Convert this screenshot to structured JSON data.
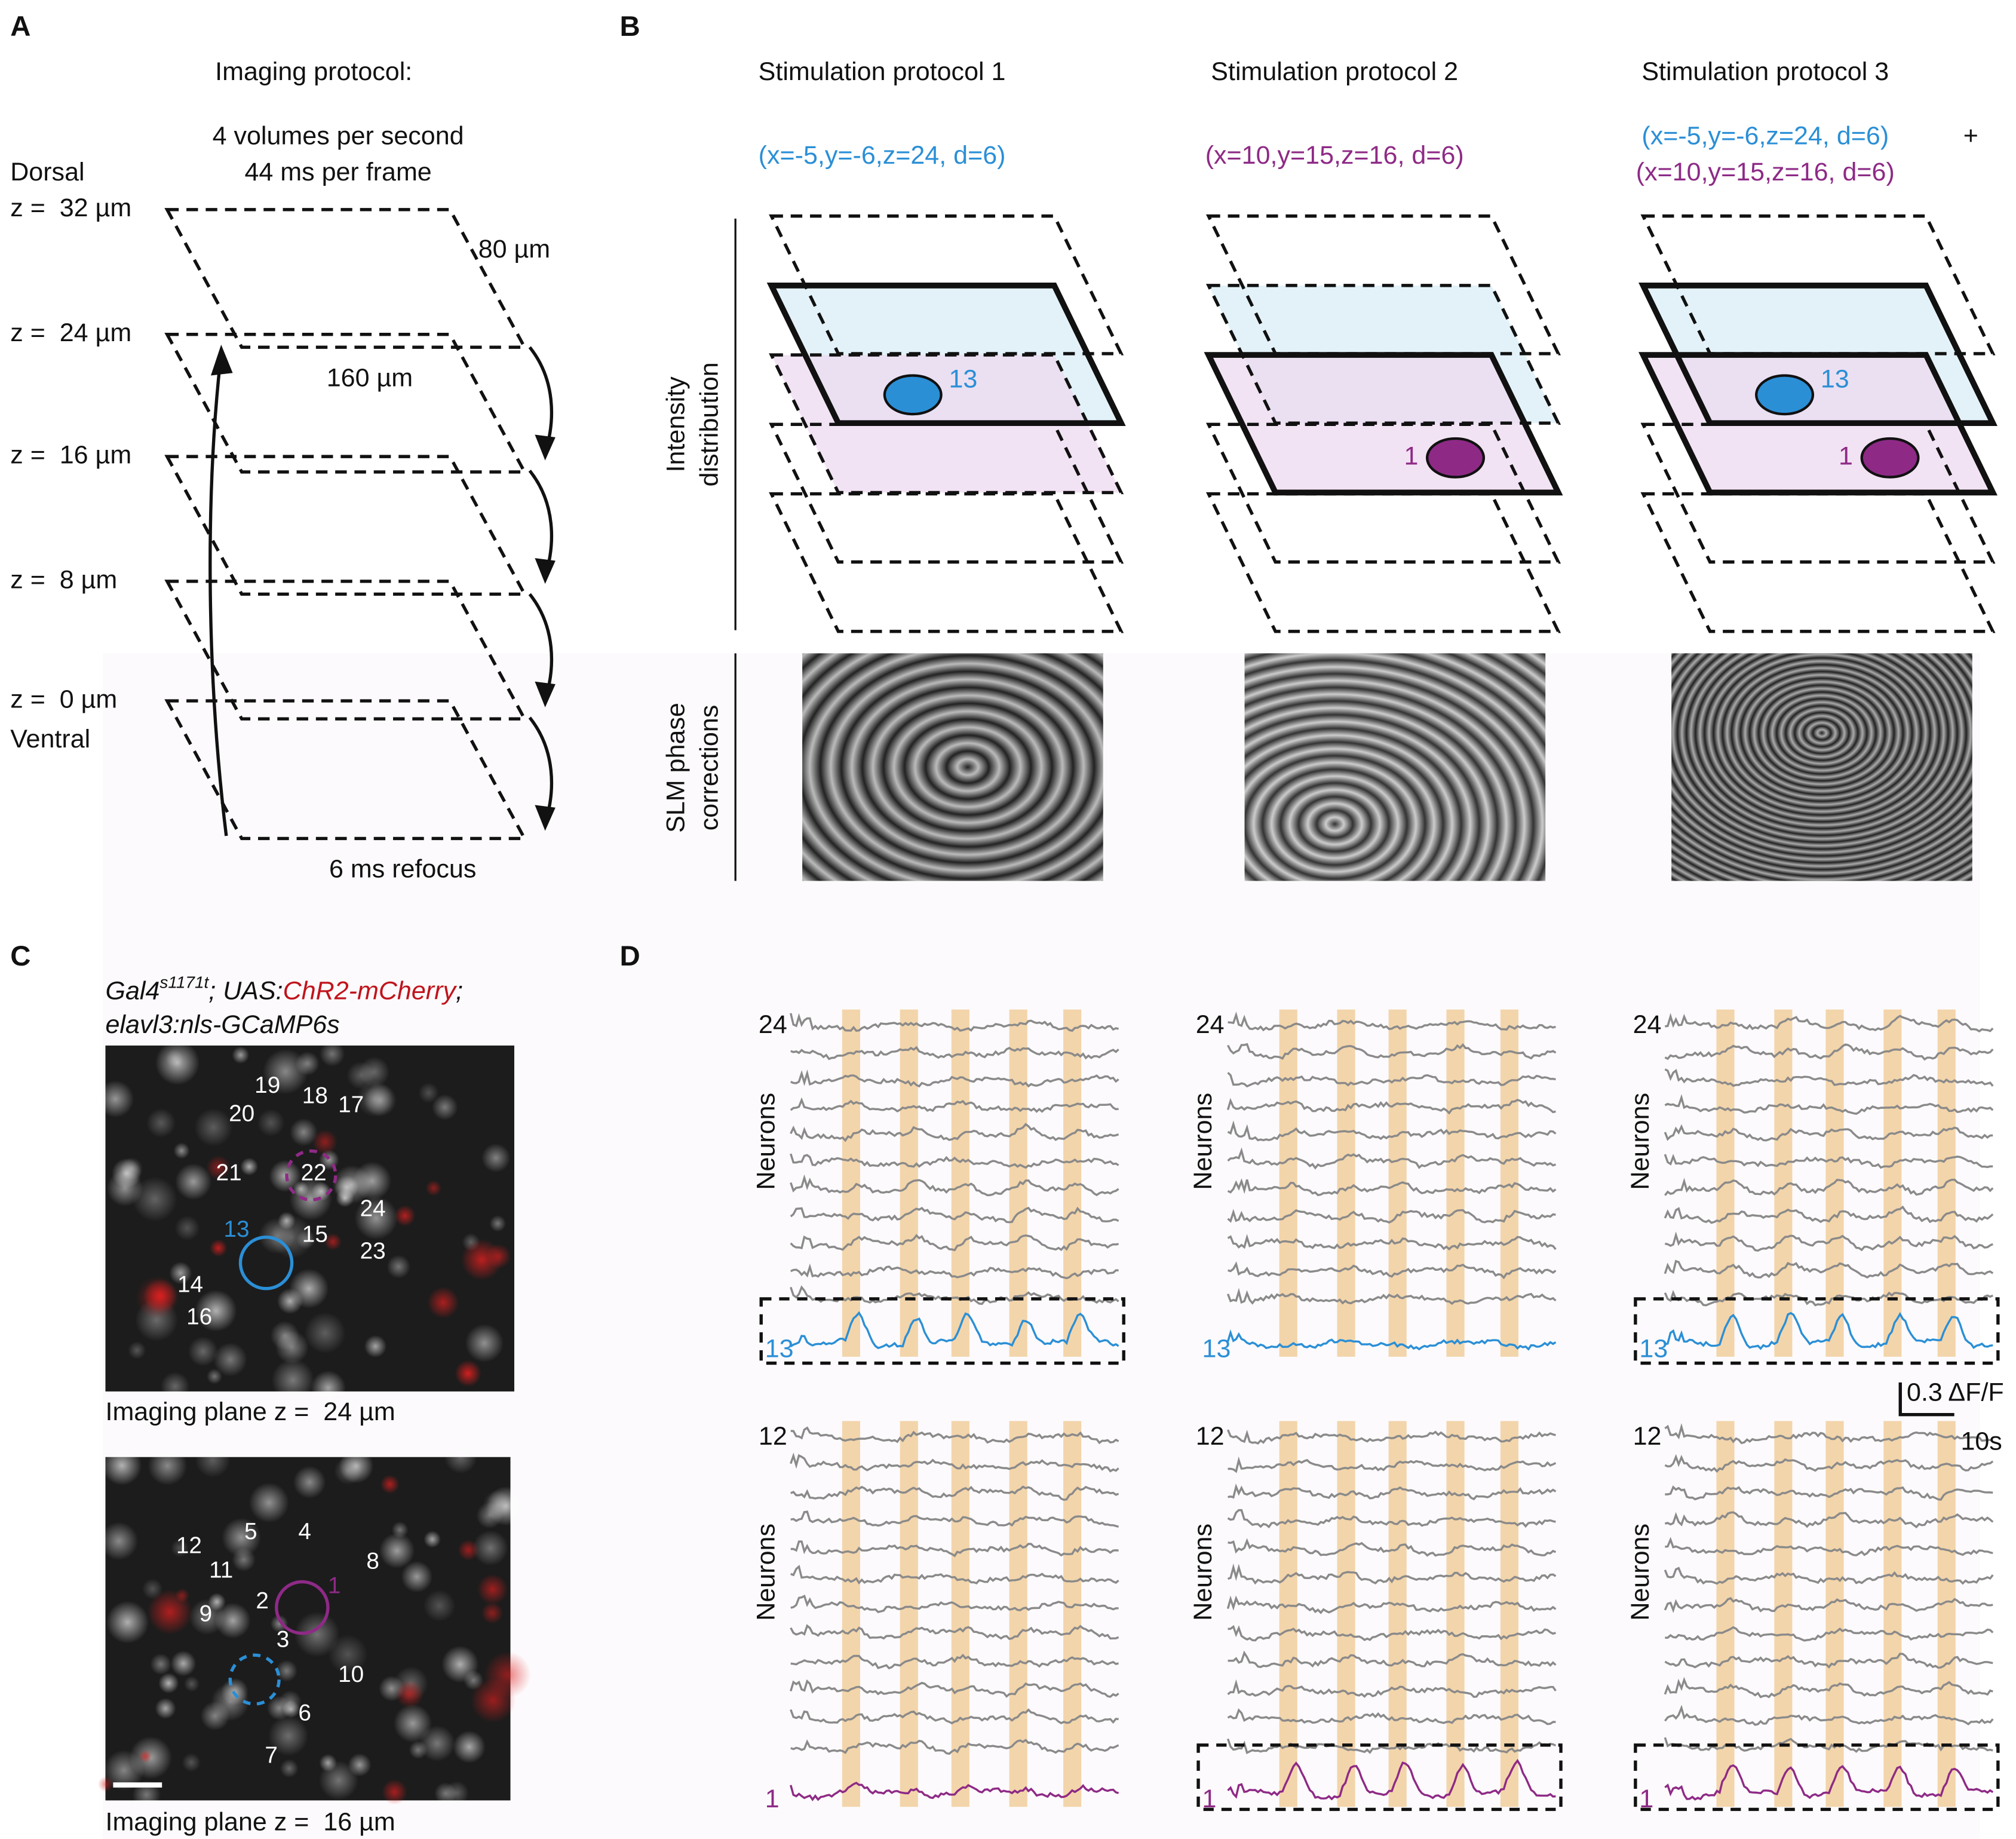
{
  "panels": {
    "a": "A",
    "b": "B",
    "c": "C",
    "d": "D"
  },
  "imaging": {
    "title": "Imaging protocol:",
    "rate": "4 volumes per second",
    "frame": "44 ms per frame",
    "dorsal": "Dorsal",
    "ventral": "Ventral",
    "planes": [
      "z =  32 µm",
      "z =  24 µm",
      "z =  16 µm",
      "z =  8 µm",
      "z =  0 µm"
    ],
    "width": "80 µm",
    "length": "160 µm",
    "refocus": "6 ms refocus"
  },
  "stimulation": {
    "protocols": [
      {
        "title": "Stimulation protocol 1",
        "targets": [
          "(x=-5,y=-6,z=24, d=6)"
        ]
      },
      {
        "title": "Stimulation protocol 2",
        "targets": [
          "(x=10,y=15,z=16, d=6)"
        ]
      },
      {
        "title": "Stimulation protocol 3",
        "targets": [
          "(x=-5,y=-6,z=24, d=6)",
          "(x=10,y=15,z=16, d=6)"
        ]
      }
    ],
    "plus": "+",
    "intensity_label": [
      "Intensity",
      "distribution"
    ],
    "slm_label": [
      "SLM phase",
      "corrections"
    ],
    "cell_a": "13",
    "cell_b": "1"
  },
  "calcium": {
    "genotype": {
      "gal4": "Gal4",
      "superscript": "s1171t",
      "uas": "; UAS:",
      "chr2": "ChR2-mCherry",
      "sep": ";",
      "gcamp": "elavl3:nls-GCaMP6s"
    },
    "top": {
      "caption": "Imaging plane z =  24 µm",
      "cells": [
        "19",
        "18",
        "17",
        "20",
        "21",
        "22",
        "24",
        "15",
        "23",
        "14",
        "16"
      ],
      "target": "13"
    },
    "bottom": {
      "caption": "Imaging plane z =  16 µm",
      "cells": [
        "5",
        "4",
        "12",
        "11",
        "8",
        "2",
        "9",
        "3",
        "10",
        "6",
        "7"
      ],
      "target": "1"
    }
  },
  "traces": {
    "top_count": "24",
    "top_target": "13",
    "bottom_count": "12",
    "bottom_target": "1",
    "ylabel": "Neurons",
    "scale_y": "0.3 ΔF/F",
    "scale_x": "10s"
  }
}
